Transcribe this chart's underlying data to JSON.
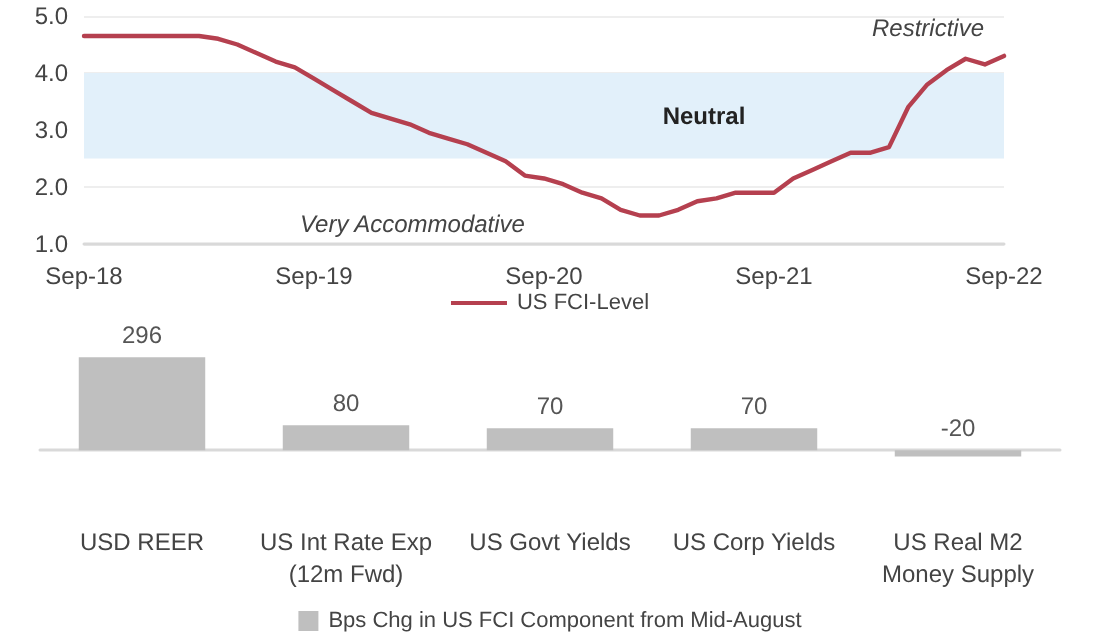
{
  "chart_data": [
    {
      "type": "line",
      "categories": [
        "Sep-18",
        null,
        null,
        null,
        null,
        null,
        null,
        null,
        null,
        null,
        null,
        null,
        "Sep-19",
        null,
        null,
        null,
        null,
        null,
        null,
        null,
        null,
        null,
        null,
        null,
        "Sep-20",
        null,
        null,
        null,
        null,
        null,
        null,
        null,
        null,
        null,
        null,
        null,
        "Sep-21",
        null,
        null,
        null,
        null,
        null,
        null,
        null,
        null,
        null,
        null,
        null,
        "Sep-22"
      ],
      "series": [
        {
          "name": "US FCI-Level",
          "color": "#b5404f",
          "values": [
            4.65,
            4.65,
            4.65,
            4.65,
            4.65,
            4.65,
            4.65,
            4.6,
            4.5,
            4.35,
            4.2,
            4.1,
            3.9,
            3.7,
            3.5,
            3.3,
            3.2,
            3.1,
            2.95,
            2.85,
            2.75,
            2.6,
            2.45,
            2.2,
            2.15,
            2.05,
            1.9,
            1.8,
            1.6,
            1.5,
            1.5,
            1.6,
            1.75,
            1.8,
            1.9,
            1.9,
            1.9,
            2.15,
            2.3,
            2.45,
            2.6,
            2.6,
            2.7,
            3.4,
            3.8,
            4.05,
            4.25,
            4.15,
            4.3
          ]
        }
      ],
      "ylim": [
        1,
        5
      ],
      "yticks": [
        {
          "value": 1,
          "label": "1.0"
        },
        {
          "value": 2,
          "label": "2.0"
        },
        {
          "value": 3,
          "label": "3.0"
        },
        {
          "value": 4,
          "label": "4.0"
        },
        {
          "value": 5,
          "label": "5.0"
        }
      ],
      "bands": [
        {
          "axis": "y",
          "from": 2.5,
          "to": 4.0,
          "label": "Neutral",
          "color": "#e2f0fa"
        }
      ],
      "annotations": [
        "Restrictive",
        "Very Accommodative"
      ],
      "grid": "y",
      "legend": "bottom",
      "marker": "none",
      "line_style": "solid"
    },
    {
      "type": "bar",
      "categories": [
        "USD REER",
        "US Int Rate Exp\n(12m Fwd)",
        "US Govt Yields",
        "US Corp Yields",
        "US Real M2\nMoney Supply"
      ],
      "series": [
        {
          "name": "Bps Chg in US FCI Component from Mid-August",
          "color": "#bfbfbf",
          "values": [
            296,
            80,
            70,
            70,
            -20
          ]
        }
      ],
      "data_labels": true,
      "tick_labels": "x",
      "grid": false,
      "legend": "bottom"
    }
  ]
}
